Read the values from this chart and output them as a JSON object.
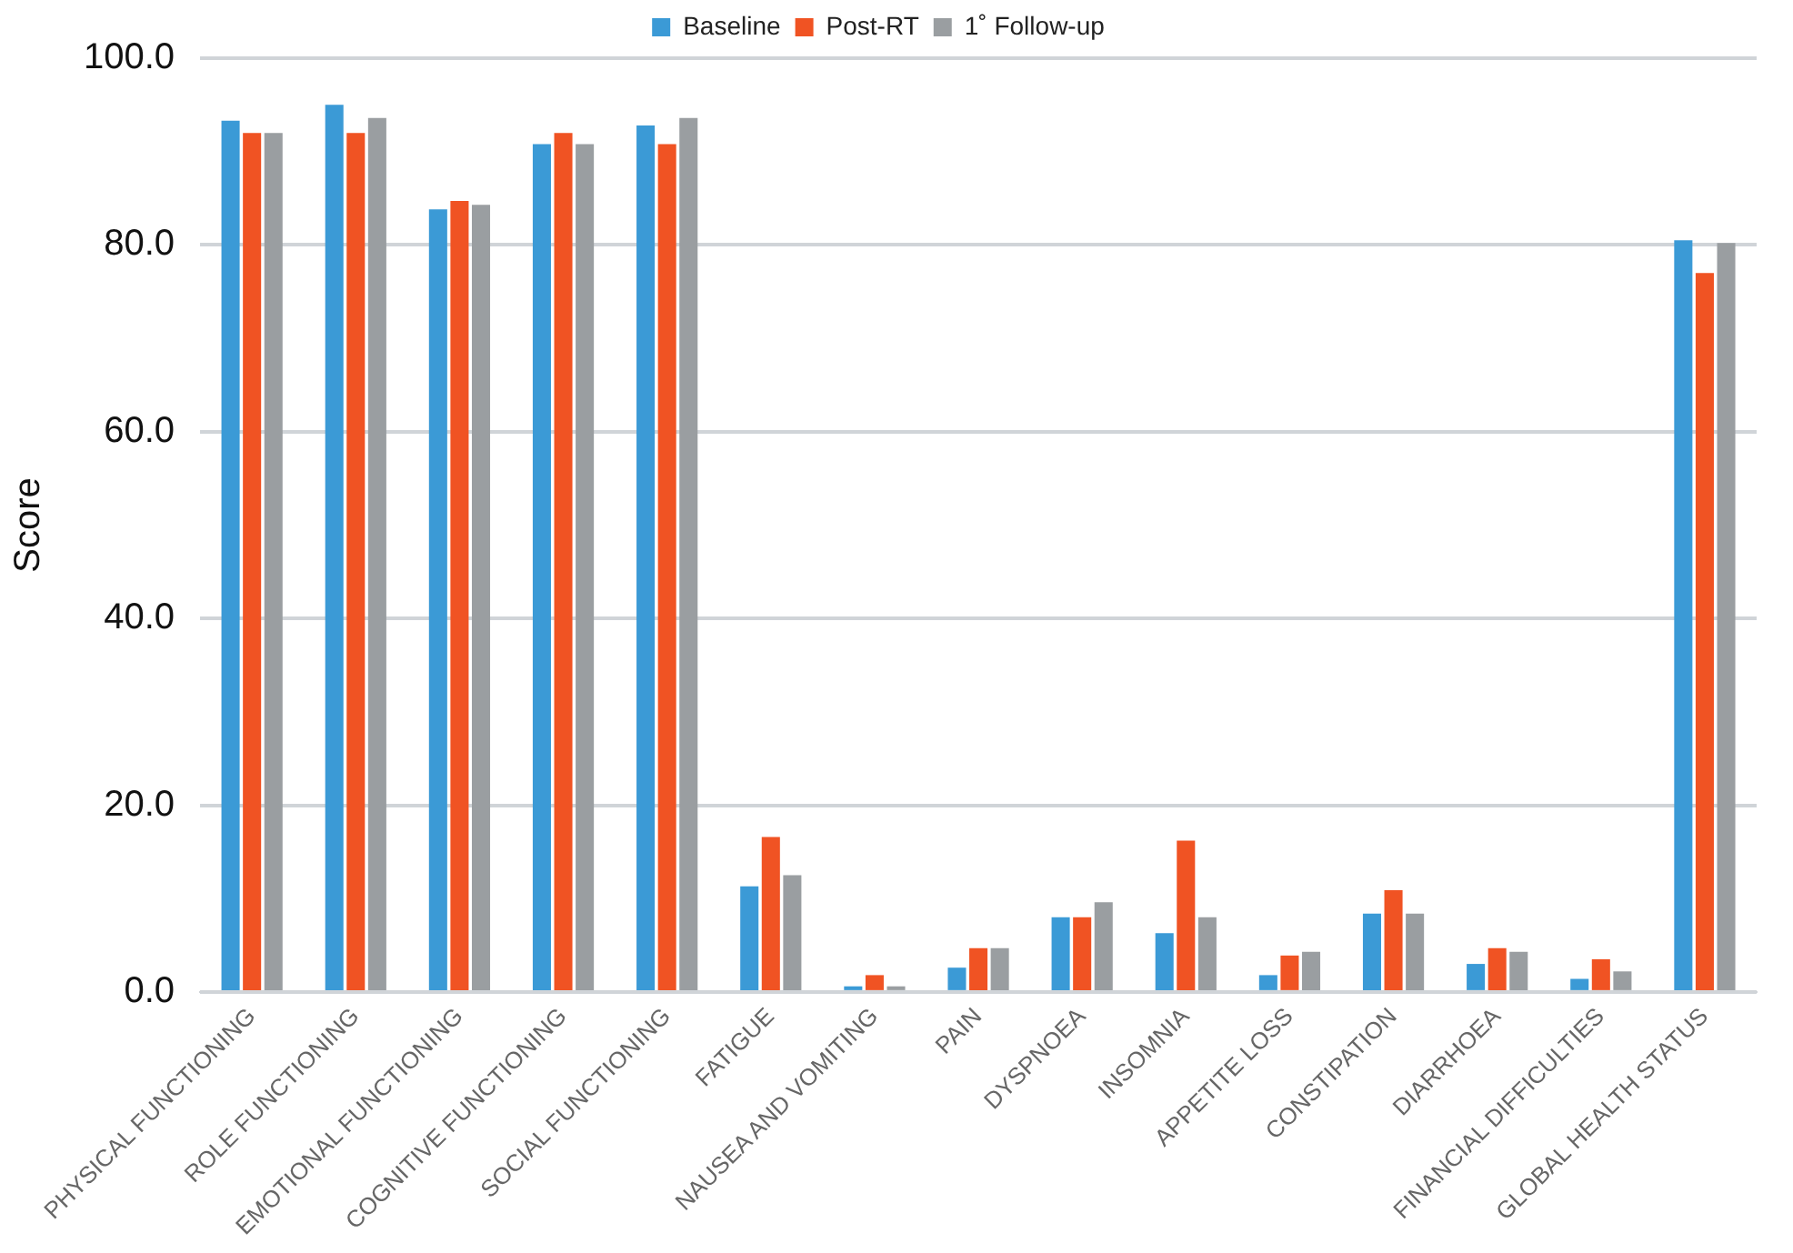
{
  "chart_data": {
    "type": "bar",
    "ylabel": "Score",
    "categories": [
      "PHYSICAL FUNCTIONING",
      "ROLE FUNCTIONING",
      "EMOTIONAL FUNCTIONING",
      "COGNITIVE FUNCTIONING",
      "SOCIAL FUNCTIONING",
      "FATIGUE",
      "NAUSEA AND VOMITING",
      "PAIN",
      "DYSPNOEA",
      "INSOMNIA",
      "APPETITE LOSS",
      "CONSTIPATION",
      "DIARRHOEA",
      "FINANCIAL DIFFICULTIES",
      "GLOBAL HEALTH STATUS"
    ],
    "series": [
      {
        "name": "Baseline",
        "color": "#3b9ad6",
        "values": [
          93.3,
          95.0,
          83.8,
          90.8,
          92.8,
          11.3,
          0.6,
          2.6,
          8.0,
          6.3,
          1.8,
          8.4,
          3.0,
          1.4,
          80.5
        ]
      },
      {
        "name": "Post-RT",
        "color": "#f05323",
        "values": [
          92.0,
          92.0,
          84.7,
          92.0,
          90.8,
          16.6,
          1.8,
          4.7,
          8.0,
          16.2,
          3.9,
          10.9,
          4.7,
          3.5,
          77.0
        ]
      },
      {
        "name": "1˚ Follow-up",
        "color": "#9a9ea1",
        "values": [
          92.0,
          93.6,
          84.3,
          90.8,
          93.6,
          12.5,
          0.6,
          4.7,
          9.6,
          8.0,
          4.3,
          8.4,
          4.3,
          2.2,
          80.2
        ]
      }
    ],
    "ylim": [
      0,
      100
    ],
    "yticks": [
      {
        "value": 0,
        "label": "0.0"
      },
      {
        "value": 20,
        "label": "20.0"
      },
      {
        "value": 40,
        "label": "40.0"
      },
      {
        "value": 60,
        "label": "60.0"
      },
      {
        "value": 80,
        "label": "80.0"
      },
      {
        "value": 100,
        "label": "100.0"
      }
    ],
    "grid": "y",
    "legend": "top"
  }
}
